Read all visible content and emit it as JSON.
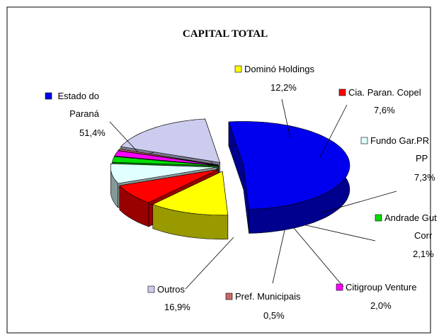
{
  "chart_data": {
    "type": "pie",
    "title": "CAPITAL TOTAL",
    "categories": [
      "Estado do Paraná",
      "Dominó Holdings",
      "Cia. Paran. Copel",
      "Fundo Gar.PR PP",
      "Andrade Gut Corr",
      "Citigroup Venture",
      "Pref. Municipais",
      "Outros"
    ],
    "values": [
      51.4,
      12.2,
      7.6,
      7.3,
      2.1,
      2.0,
      0.5,
      16.9
    ],
    "value_labels": [
      "51,4%",
      "12,2%",
      "7,6%",
      "7,3%",
      "2,1%",
      "2,0%",
      "0,5%",
      "16,9%"
    ],
    "colors": [
      "#0000ee",
      "#ffff00",
      "#ff0000",
      "#e0ffff",
      "#00dd00",
      "#ff00ff",
      "#cc6666",
      "#ccccee"
    ]
  }
}
